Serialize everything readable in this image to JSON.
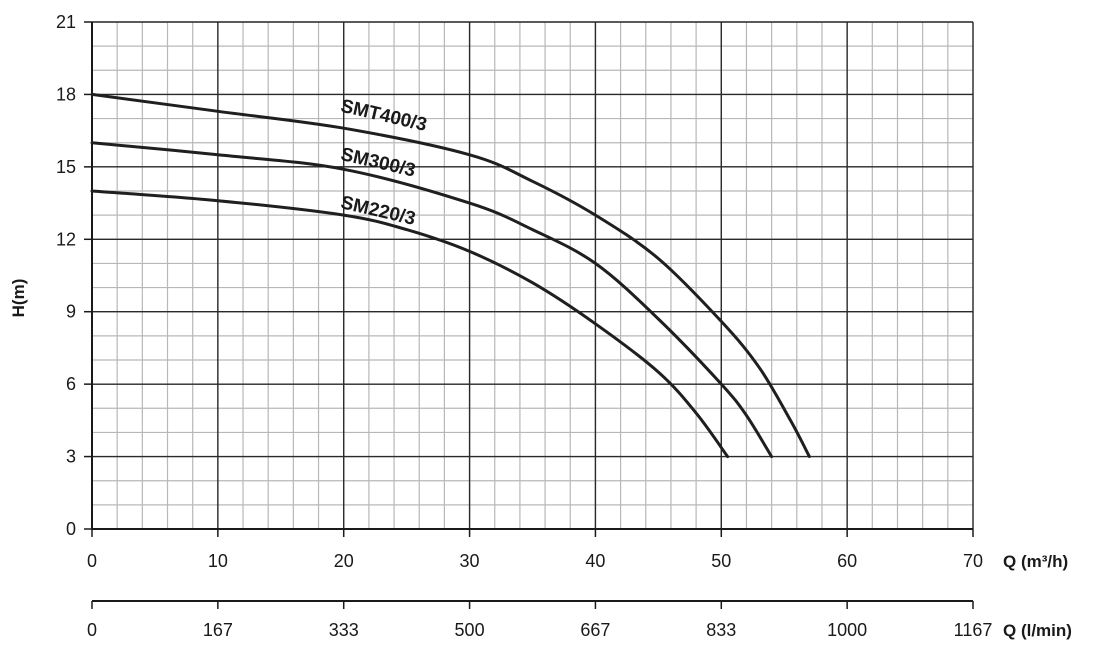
{
  "chart_data": {
    "type": "line",
    "xlabel": "Q (m³/h)",
    "ylabel": "H(m)",
    "secondary_xlabel": "Q (l/min)",
    "xlim": [
      0,
      70
    ],
    "ylim": [
      0,
      21
    ],
    "x_ticks": [
      "0",
      "10",
      "20",
      "30",
      "40",
      "50",
      "60",
      "70"
    ],
    "y_ticks": [
      "0",
      "3",
      "6",
      "9",
      "12",
      "15",
      "18",
      "21"
    ],
    "secondary_x_ticks": [
      "0",
      "167",
      "333",
      "500",
      "667",
      "833",
      "1000",
      "1167"
    ],
    "grid": true,
    "series": [
      {
        "name": "SMT400/3",
        "points": [
          [
            0,
            18
          ],
          [
            10,
            17.3
          ],
          [
            20,
            16.6
          ],
          [
            30,
            15.5
          ],
          [
            35,
            14.4
          ],
          [
            40,
            13
          ],
          [
            45,
            11.2
          ],
          [
            50,
            8.6
          ],
          [
            53,
            6.7
          ],
          [
            55.5,
            4.5
          ],
          [
            57,
            3
          ]
        ]
      },
      {
        "name": "SM300/3",
        "points": [
          [
            0,
            16
          ],
          [
            10,
            15.5
          ],
          [
            20,
            14.9
          ],
          [
            30,
            13.5
          ],
          [
            35,
            12.4
          ],
          [
            40,
            11
          ],
          [
            45,
            8.7
          ],
          [
            50,
            6
          ],
          [
            52,
            4.7
          ],
          [
            54,
            3
          ]
        ]
      },
      {
        "name": "SM220/3",
        "points": [
          [
            0,
            14
          ],
          [
            10,
            13.6
          ],
          [
            20,
            13
          ],
          [
            25,
            12.4
          ],
          [
            30,
            11.5
          ],
          [
            35,
            10.2
          ],
          [
            40,
            8.5
          ],
          [
            45,
            6.5
          ],
          [
            48,
            4.8
          ],
          [
            50.5,
            3
          ]
        ]
      }
    ]
  }
}
